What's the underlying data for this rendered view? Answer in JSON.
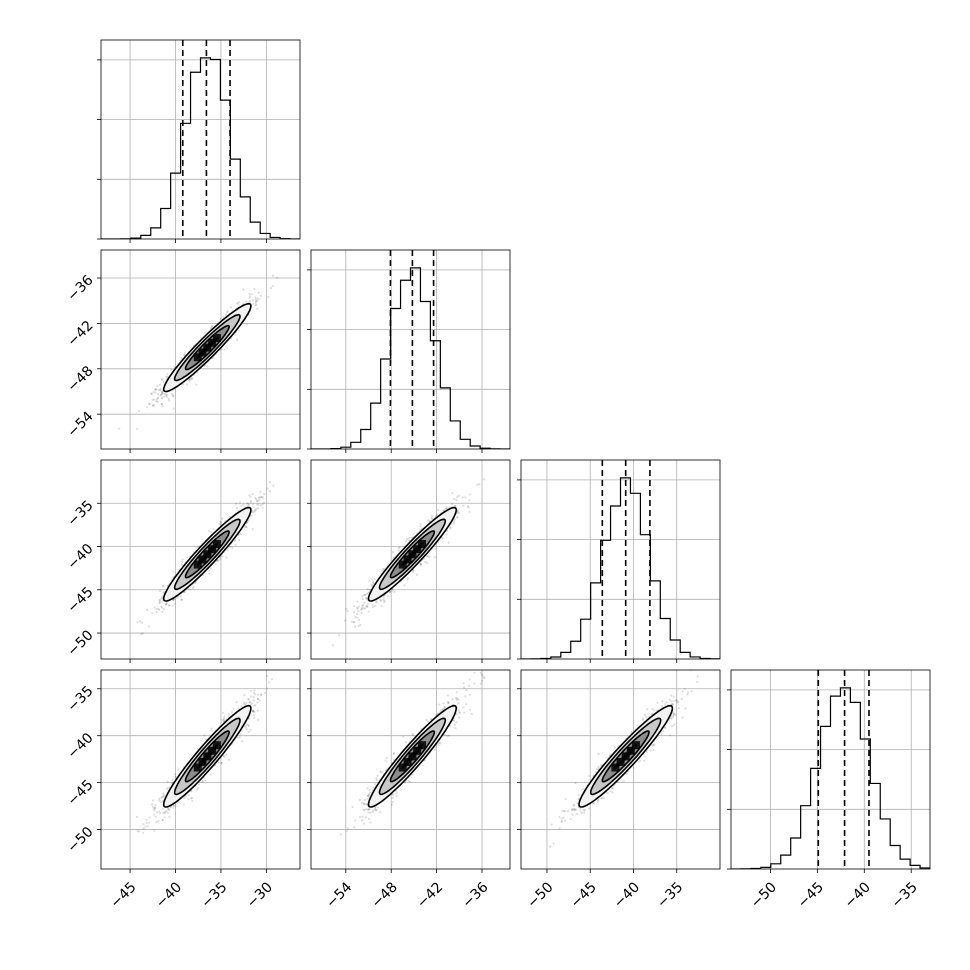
{
  "chart_data": {
    "type": "corner",
    "title": "",
    "parameters": [
      {
        "ticks": [
          -45,
          -40,
          -35,
          -30
        ],
        "tick_labels": [
          "−45",
          "−40",
          "−35",
          "−30"
        ],
        "range": [
          -48.2,
          -26.3
        ],
        "mean": -36.5,
        "std": 2.4,
        "quantiles": [
          -39.2,
          -36.6,
          -34.0
        ]
      },
      {
        "ticks": [
          -54,
          -48,
          -42,
          -36
        ],
        "tick_labels": [
          "−54",
          "−48",
          "−42",
          "−36"
        ],
        "range": [
          -58.6,
          -32.3
        ],
        "mean": -45.2,
        "std": 2.9,
        "quantiles": [
          -48.1,
          -45.2,
          -42.4
        ]
      },
      {
        "ticks": [
          -50,
          -45,
          -40,
          -35
        ],
        "tick_labels": [
          "−50",
          "−45",
          "−40",
          "−35"
        ],
        "range": [
          -53.0,
          -30.0
        ],
        "mean": -40.9,
        "std": 2.7,
        "quantiles": [
          -43.6,
          -40.9,
          -38.1
        ]
      },
      {
        "ticks": [
          -50,
          -45,
          -40,
          -35
        ],
        "tick_labels": [
          "−50",
          "−45",
          "−40",
          "−35"
        ],
        "range": [
          -54.2,
          -33.0
        ],
        "mean": -42.2,
        "std": 2.7,
        "quantiles": [
          -44.9,
          -42.1,
          -39.5
        ]
      }
    ],
    "correlations": [
      [
        1.0,
        0.95,
        0.95,
        0.95
      ],
      [
        0.95,
        1.0,
        0.95,
        0.95
      ],
      [
        0.95,
        0.95,
        1.0,
        0.95
      ],
      [
        0.95,
        0.95,
        0.95,
        1.0
      ]
    ],
    "histogram_bins": 20,
    "contour_levels_sigma": [
      0.5,
      1.0,
      1.5,
      2.0
    ],
    "grid": true,
    "colors": {
      "line": "#000000",
      "grid": "#b0b0b0",
      "samples": "#000000"
    }
  }
}
